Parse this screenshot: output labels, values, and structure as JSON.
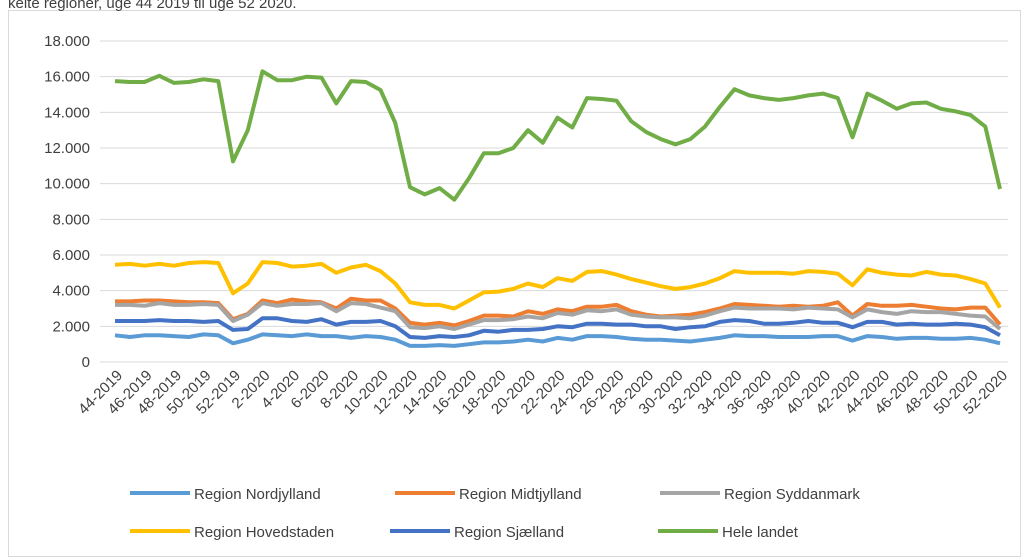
{
  "chart_data": {
    "type": "line",
    "title": "kelte regioner, uge 44 2019 til uge 52 2020.",
    "categories": [
      "44-2019",
      null,
      "46-2019",
      null,
      "48-2019",
      null,
      "50-2019",
      null,
      "52-2019",
      null,
      "2-2020",
      null,
      "4-2020",
      null,
      "6-2020",
      null,
      "8-2020",
      null,
      "10-2020",
      null,
      "12-2020",
      null,
      "14-2020",
      null,
      "16-2020",
      null,
      "18-2020",
      null,
      "20-2020",
      null,
      "22-2020",
      null,
      "24-2020",
      null,
      "26-2020",
      null,
      "28-2020",
      null,
      "30-2020",
      null,
      "32-2020",
      null,
      "34-2020",
      null,
      "36-2020",
      null,
      "38-2020",
      null,
      "40-2020",
      null,
      "42-2020",
      null,
      "44-2020",
      null,
      "46-2020",
      null,
      "48-2020",
      null,
      "50-2020",
      null,
      "52-2020"
    ],
    "ylim": [
      0,
      18000
    ],
    "yticks": [
      0,
      {
        "value": 2000,
        "label": "2.000"
      },
      {
        "value": 4000,
        "label": "4.000"
      },
      {
        "value": 6000,
        "label": "6.000"
      },
      {
        "value": 8000,
        "label": "8.000"
      },
      {
        "value": 10000,
        "label": "10.000"
      },
      {
        "value": 12000,
        "label": "12.000"
      },
      {
        "value": 14000,
        "label": "14.000"
      },
      {
        "value": 16000,
        "label": "16.000"
      },
      {
        "value": 18000,
        "label": "18.000"
      }
    ],
    "grid": true,
    "legend": "bottom",
    "series": [
      {
        "name": "Region Nordjylland",
        "color": "#5b9bd5",
        "values": [
          1500,
          1400,
          1500,
          1500,
          1450,
          1400,
          1550,
          1500,
          1050,
          1250,
          1550,
          1500,
          1450,
          1550,
          1450,
          1450,
          1350,
          1450,
          1400,
          1250,
          900,
          900,
          950,
          900,
          1000,
          1100,
          1100,
          1150,
          1250,
          1150,
          1350,
          1250,
          1450,
          1450,
          1400,
          1300,
          1250,
          1250,
          1200,
          1150,
          1250,
          1350,
          1500,
          1450,
          1450,
          1400,
          1400,
          1400,
          1450,
          1450,
          1200,
          1450,
          1400,
          1300,
          1350,
          1350,
          1300,
          1300,
          1350,
          1250,
          1050
        ]
      },
      {
        "name": "Region Midtjylland",
        "color": "#ed7d31",
        "values": [
          3400,
          3400,
          3450,
          3450,
          3400,
          3350,
          3350,
          3300,
          2400,
          2700,
          3450,
          3300,
          3500,
          3400,
          3350,
          3000,
          3550,
          3450,
          3450,
          3000,
          2200,
          2100,
          2200,
          2050,
          2300,
          2600,
          2600,
          2550,
          2850,
          2700,
          2950,
          2850,
          3100,
          3100,
          3200,
          2850,
          2650,
          2550,
          2600,
          2650,
          2800,
          3000,
          3250,
          3200,
          3150,
          3100,
          3150,
          3100,
          3150,
          3350,
          2600,
          3250,
          3150,
          3150,
          3200,
          3100,
          3000,
          2950,
          3050,
          3050,
          2100
        ]
      },
      {
        "name": "Region Syddanmark",
        "color": "#a5a5a5",
        "values": [
          3200,
          3200,
          3150,
          3300,
          3200,
          3200,
          3250,
          3200,
          2300,
          2650,
          3300,
          3150,
          3250,
          3250,
          3300,
          2850,
          3300,
          3250,
          3050,
          2850,
          1950,
          1900,
          2000,
          1850,
          2100,
          2350,
          2350,
          2400,
          2550,
          2450,
          2750,
          2650,
          2900,
          2850,
          2950,
          2650,
          2550,
          2500,
          2500,
          2450,
          2600,
          2850,
          3050,
          3000,
          3000,
          3000,
          2950,
          3050,
          3000,
          2950,
          2500,
          2950,
          2800,
          2700,
          2850,
          2800,
          2800,
          2700,
          2600,
          2550,
          1850
        ]
      },
      {
        "name": "Region Hovedstaden",
        "color": "#ffc000",
        "values": [
          5450,
          5500,
          5400,
          5500,
          5400,
          5550,
          5600,
          5550,
          3850,
          4400,
          5600,
          5550,
          5350,
          5400,
          5500,
          5000,
          5300,
          5450,
          5100,
          4400,
          3350,
          3200,
          3200,
          3000,
          3450,
          3900,
          3950,
          4100,
          4400,
          4200,
          4700,
          4550,
          5050,
          5100,
          4900,
          4650,
          4450,
          4250,
          4100,
          4200,
          4400,
          4700,
          5100,
          5000,
          5000,
          5000,
          4950,
          5100,
          5050,
          4950,
          4300,
          5200,
          5000,
          4900,
          4850,
          5050,
          4900,
          4850,
          4650,
          4400,
          3050
        ]
      },
      {
        "name": "Region Sjælland",
        "color": "#4472c4",
        "values": [
          2300,
          2300,
          2300,
          2350,
          2300,
          2300,
          2250,
          2300,
          1800,
          1850,
          2450,
          2450,
          2300,
          2250,
          2400,
          2100,
          2250,
          2250,
          2300,
          2000,
          1400,
          1350,
          1450,
          1400,
          1500,
          1750,
          1700,
          1800,
          1800,
          1850,
          2000,
          1950,
          2150,
          2150,
          2100,
          2100,
          2000,
          2000,
          1850,
          1950,
          2000,
          2250,
          2350,
          2300,
          2150,
          2150,
          2200,
          2300,
          2200,
          2200,
          1950,
          2250,
          2250,
          2100,
          2150,
          2100,
          2100,
          2150,
          2100,
          1950,
          1500
        ]
      },
      {
        "name": "Hele landet",
        "color": "#70ad47",
        "values": [
          15750,
          15700,
          15700,
          16050,
          15650,
          15700,
          15850,
          15750,
          11250,
          13000,
          16300,
          15800,
          15800,
          16000,
          15950,
          14500,
          15750,
          15700,
          15250,
          13400,
          9800,
          9400,
          9750,
          9100,
          10300,
          11700,
          11700,
          12000,
          13000,
          12300,
          13700,
          13150,
          14800,
          14750,
          14650,
          13500,
          12900,
          12500,
          12200,
          12500,
          13200,
          14300,
          15300,
          14950,
          14800,
          14700,
          14800,
          14950,
          15050,
          14800,
          12600,
          15050,
          14650,
          14200,
          14500,
          14550,
          14200,
          14050,
          13850,
          13200,
          9700
        ]
      }
    ]
  }
}
